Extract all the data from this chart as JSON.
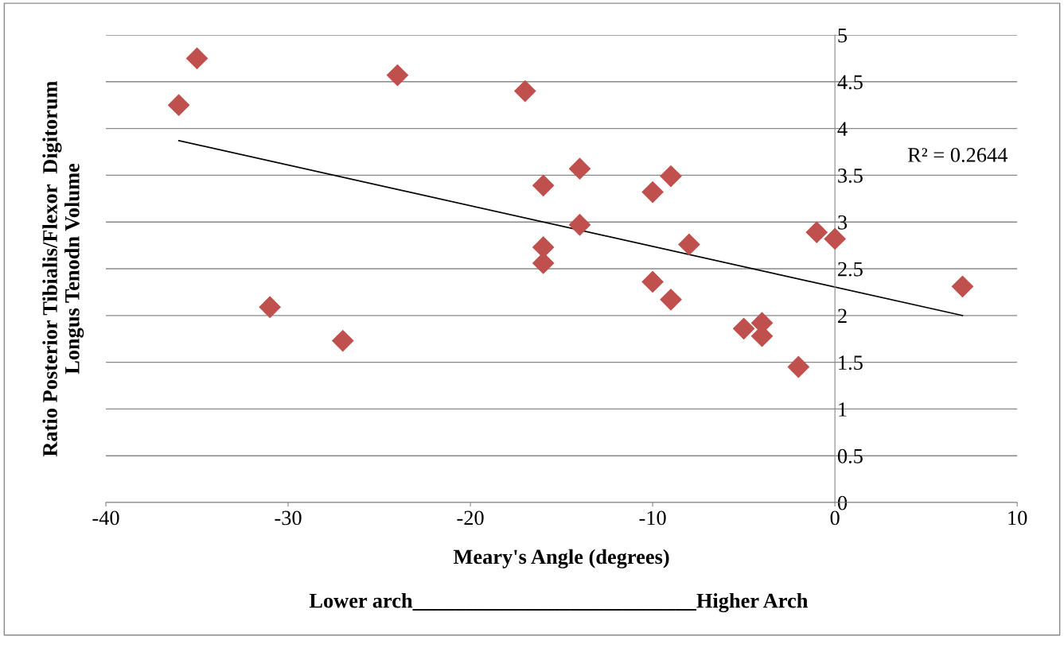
{
  "chart_data": {
    "type": "scatter",
    "xlabel": "Meary's Angle (degrees)",
    "ylabel": "Ratio Posterior Tibialis/Flexor  Digitorum\nLongus Tenodn Volume",
    "annotations": [
      "R² = 0.2644",
      "Lower arch___________________________Higher Arch"
    ],
    "series": [
      {
        "color": "#c0504d",
        "marker": "diamond",
        "x": [
          -35,
          -36,
          -24,
          -17,
          -14,
          -16,
          -9,
          -10,
          -14,
          -16,
          -16,
          -8,
          -10,
          -9,
          -1,
          0,
          7,
          -31,
          -27,
          -5,
          -4,
          -4,
          -2
        ],
        "values": [
          4.75,
          4.25,
          4.57,
          4.4,
          3.57,
          3.39,
          3.49,
          3.32,
          2.97,
          2.73,
          2.56,
          2.76,
          2.36,
          2.17,
          2.89,
          2.82,
          2.31,
          2.09,
          1.73,
          1.86,
          1.92,
          1.78,
          1.45
        ]
      },
      {
        "type": "line",
        "color": "#000000",
        "x": [
          -36,
          7
        ],
        "values": [
          3.87,
          2.0
        ]
      }
    ],
    "xlim": [
      -40,
      10
    ],
    "xticks": [
      -40,
      -30,
      -20,
      -10,
      0,
      10
    ],
    "ylim": [
      0,
      5
    ],
    "yticks": [
      0,
      0.5,
      1,
      1.5,
      2,
      2.5,
      3,
      3.5,
      4,
      4.5,
      5
    ],
    "grid": "y"
  }
}
